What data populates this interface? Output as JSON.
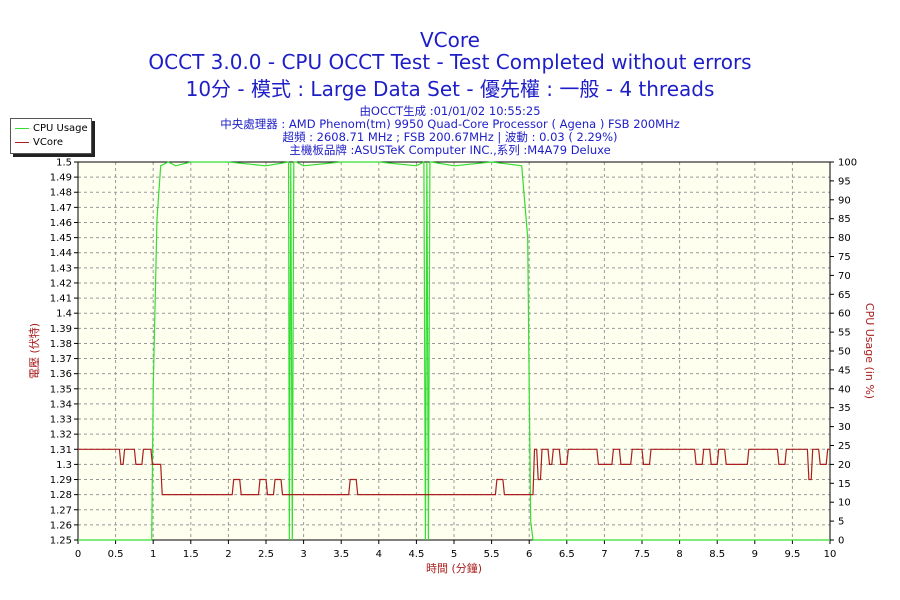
{
  "header": {
    "title": "VCore",
    "subtitle1": "OCCT 3.0.0 - CPU OCCT Test - Test Completed without errors",
    "subtitle2": "10分 - 模式 : Large Data Set - 優先權 : 一般 - 4 threads",
    "meta1": "由OCCT生成 :01/01/02 10:55:25",
    "meta2": "中央處理器 : AMD Phenom(tm) 9950 Quad-Core Processor ( Agena ) FSB 200MHz",
    "meta3": "超頻 : 2608.71 MHz ; FSB 200.67MHz | 波動 : 0.03 ( 2.29%)",
    "meta4": "主機板品牌 :ASUSTeK Computer INC.,系列 :M4A79 Deluxe"
  },
  "legend": {
    "items": [
      {
        "label": "CPU Usage",
        "color": "#33dd33"
      },
      {
        "label": "VCore",
        "color": "#aa1e1e"
      }
    ]
  },
  "colors": {
    "plot_bg": "#fffff0",
    "grid": "#999999",
    "cpu": "#33dd33",
    "vcore": "#aa1e1e",
    "left_axis": "#aa1e1e",
    "right_axis": "#aa1e1e"
  },
  "chart_data": {
    "type": "line",
    "xlabel": "時間 (分鐘)",
    "ylabel_left": "電壓 (伏特)",
    "ylabel_right": "CPU Usage (in %)",
    "xlim": [
      0,
      10
    ],
    "ylim_left": [
      1.25,
      1.5
    ],
    "ylim_right": [
      0,
      100
    ],
    "grid": true,
    "legend_position": "top-left",
    "x_ticks": [
      "0",
      "0.5",
      "1",
      "1.5",
      "2",
      "2.5",
      "3",
      "3.5",
      "4",
      "4.5",
      "5",
      "5.5",
      "6",
      "6.5",
      "7",
      "7.5",
      "8",
      "8.5",
      "9",
      "9.5",
      "10"
    ],
    "y_left_ticks": [
      "1.25",
      "1.26",
      "1.27",
      "1.28",
      "1.29",
      "1.3",
      "1.31",
      "1.32",
      "1.33",
      "1.34",
      "1.35",
      "1.36",
      "1.37",
      "1.38",
      "1.39",
      "1.4",
      "1.41",
      "1.42",
      "1.43",
      "1.44",
      "1.45",
      "1.46",
      "1.47",
      "1.48",
      "1.49",
      "1.5"
    ],
    "y_right_ticks": [
      "0",
      "5",
      "10",
      "15",
      "20",
      "25",
      "30",
      "35",
      "40",
      "45",
      "50",
      "55",
      "60",
      "65",
      "70",
      "75",
      "80",
      "85",
      "90",
      "95",
      "100"
    ],
    "series": [
      {
        "name": "CPU Usage",
        "axis": "right",
        "x": [
          0,
          0.98,
          1.0,
          1.05,
          1.1,
          1.2,
          1.3,
          1.5,
          2.0,
          2.5,
          2.8,
          2.81,
          2.83,
          2.85,
          2.87,
          2.9,
          3.0,
          3.5,
          4.0,
          4.5,
          4.6,
          4.62,
          4.64,
          4.66,
          4.68,
          4.7,
          5.0,
          5.5,
          5.9,
          5.98,
          6.0,
          6.02,
          6.05,
          6.1,
          10
        ],
        "y": [
          0,
          0,
          40,
          85,
          99,
          100,
          99,
          100,
          100,
          99,
          100,
          0,
          100,
          0,
          100,
          100,
          99,
          100,
          100,
          99,
          100,
          0,
          100,
          0,
          100,
          100,
          99,
          100,
          99,
          80,
          40,
          5,
          0,
          0,
          0
        ]
      },
      {
        "name": "VCore",
        "axis": "left",
        "x": [
          0,
          0.55,
          0.57,
          0.6,
          0.62,
          0.75,
          0.77,
          0.85,
          0.87,
          0.97,
          0.99,
          1.1,
          1.12,
          2.05,
          2.07,
          2.15,
          2.17,
          2.4,
          2.42,
          2.5,
          2.52,
          2.6,
          2.62,
          2.7,
          2.72,
          2.8,
          2.82,
          3.6,
          3.62,
          3.7,
          3.72,
          5.55,
          5.57,
          5.65,
          5.67,
          6.05,
          6.07,
          6.1,
          6.12,
          6.15,
          6.17,
          6.25,
          6.27,
          6.3,
          6.32,
          6.4,
          6.42,
          6.5,
          6.52,
          6.9,
          6.92,
          7.1,
          7.12,
          7.2,
          7.22,
          7.35,
          7.37,
          7.5,
          7.52,
          7.6,
          7.62,
          7.8,
          7.82,
          8.2,
          8.22,
          8.3,
          8.32,
          8.4,
          8.42,
          8.5,
          8.52,
          8.6,
          8.62,
          8.9,
          8.92,
          9.3,
          9.32,
          9.4,
          9.42,
          9.7,
          9.72,
          9.75,
          9.77,
          9.85,
          9.87,
          9.95,
          9.97,
          10
        ],
        "y": [
          1.31,
          1.31,
          1.3,
          1.3,
          1.31,
          1.31,
          1.3,
          1.3,
          1.31,
          1.31,
          1.3,
          1.3,
          1.28,
          1.28,
          1.29,
          1.29,
          1.28,
          1.28,
          1.29,
          1.29,
          1.28,
          1.28,
          1.29,
          1.29,
          1.28,
          1.28,
          1.28,
          1.28,
          1.29,
          1.29,
          1.28,
          1.28,
          1.29,
          1.29,
          1.28,
          1.28,
          1.31,
          1.31,
          1.29,
          1.29,
          1.31,
          1.31,
          1.3,
          1.3,
          1.31,
          1.31,
          1.3,
          1.3,
          1.31,
          1.31,
          1.3,
          1.3,
          1.31,
          1.31,
          1.3,
          1.3,
          1.31,
          1.31,
          1.3,
          1.3,
          1.31,
          1.31,
          1.31,
          1.31,
          1.3,
          1.3,
          1.31,
          1.31,
          1.3,
          1.3,
          1.31,
          1.31,
          1.3,
          1.3,
          1.31,
          1.31,
          1.3,
          1.3,
          1.31,
          1.31,
          1.29,
          1.29,
          1.31,
          1.31,
          1.3,
          1.3,
          1.31,
          1.31
        ]
      }
    ]
  }
}
